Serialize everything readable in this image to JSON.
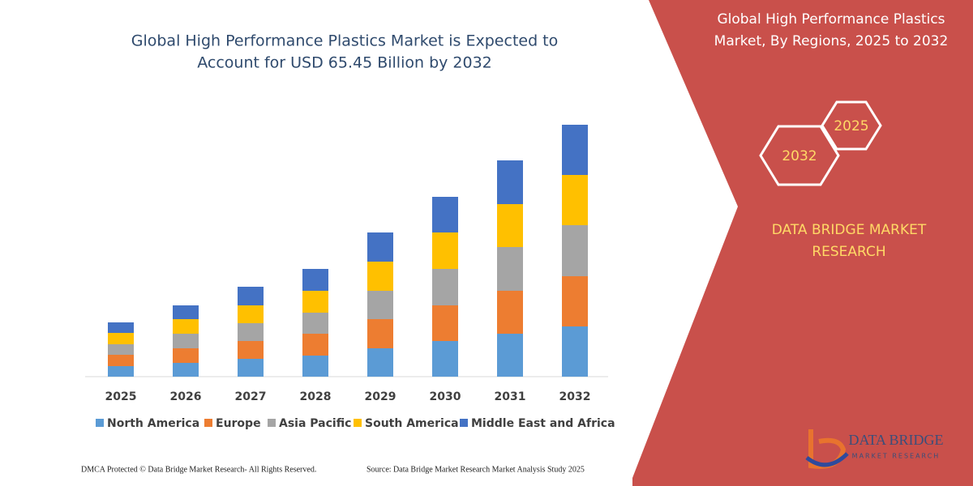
{
  "chart_data": {
    "type": "stacked-bar",
    "title": [
      "Global High Performance Plastics Market is Expected to",
      "Account for USD 65.45 Billion by 2032"
    ],
    "categories": [
      "2025",
      "2026",
      "2027",
      "2028",
      "2029",
      "2030",
      "2031",
      "2032"
    ],
    "series": [
      {
        "name": "North America",
        "color": "#5b9bd5",
        "values": [
          13,
          17,
          22,
          26,
          35,
          44,
          53,
          62
        ]
      },
      {
        "name": "Europe",
        "color": "#ed7d31",
        "values": [
          14,
          18,
          22,
          27,
          36,
          44,
          53,
          62
        ]
      },
      {
        "name": "Asia Pacific",
        "color": "#a5a5a5",
        "values": [
          13,
          18,
          22,
          26,
          35,
          45,
          54,
          63
        ]
      },
      {
        "name": "South America",
        "color": "#ffc000",
        "values": [
          14,
          18,
          22,
          27,
          36,
          45,
          53,
          62
        ]
      },
      {
        "name": "Middle East and Africa",
        "color": "#4472c4",
        "values": [
          13,
          17,
          23,
          27,
          36,
          44,
          54,
          62
        ]
      }
    ]
  },
  "panel": {
    "title": [
      "Global High Performance Plastics",
      "Market, By Regions, 2025 to 2032"
    ],
    "hex_start": "2025",
    "hex_end": "2032",
    "brand": [
      "DATA BRIDGE MARKET",
      "RESEARCH"
    ],
    "logo_name": "DATA BRIDGE",
    "logo_sub": "MARKET RESEARCH"
  },
  "footer": {
    "left": "DMCA Protected © Data Bridge Market Research-  All Rights Reserved.",
    "right": "Source: Data Bridge Market Research  Market Analysis Study 2025"
  }
}
